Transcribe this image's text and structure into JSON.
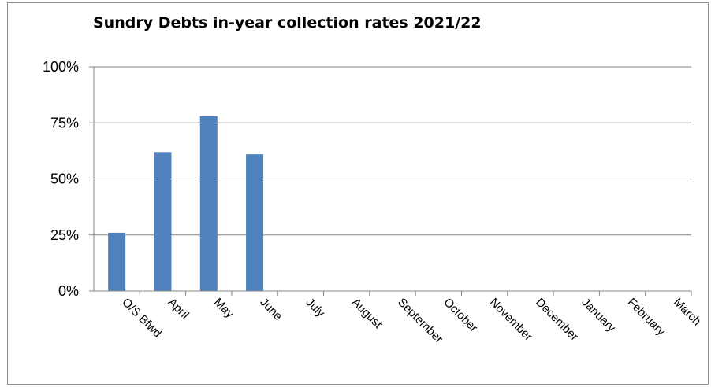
{
  "chart_data": {
    "type": "bar",
    "title": "Sundry Debts in-year collection rates 2021/22",
    "xlabel": "",
    "ylabel": "",
    "categories": [
      "O/S Bfwd",
      "April",
      "May",
      "June",
      "July",
      "August",
      "September",
      "October",
      "November",
      "December",
      "January",
      "February",
      "March"
    ],
    "values": [
      26,
      62,
      78,
      61,
      null,
      null,
      null,
      null,
      null,
      null,
      null,
      null,
      null
    ],
    "ylim": [
      0,
      100
    ],
    "yticks": [
      "0%",
      "25%",
      "50%",
      "75%",
      "100%"
    ],
    "grid": true,
    "legend": "none",
    "bar_color": "#4f81bd"
  }
}
